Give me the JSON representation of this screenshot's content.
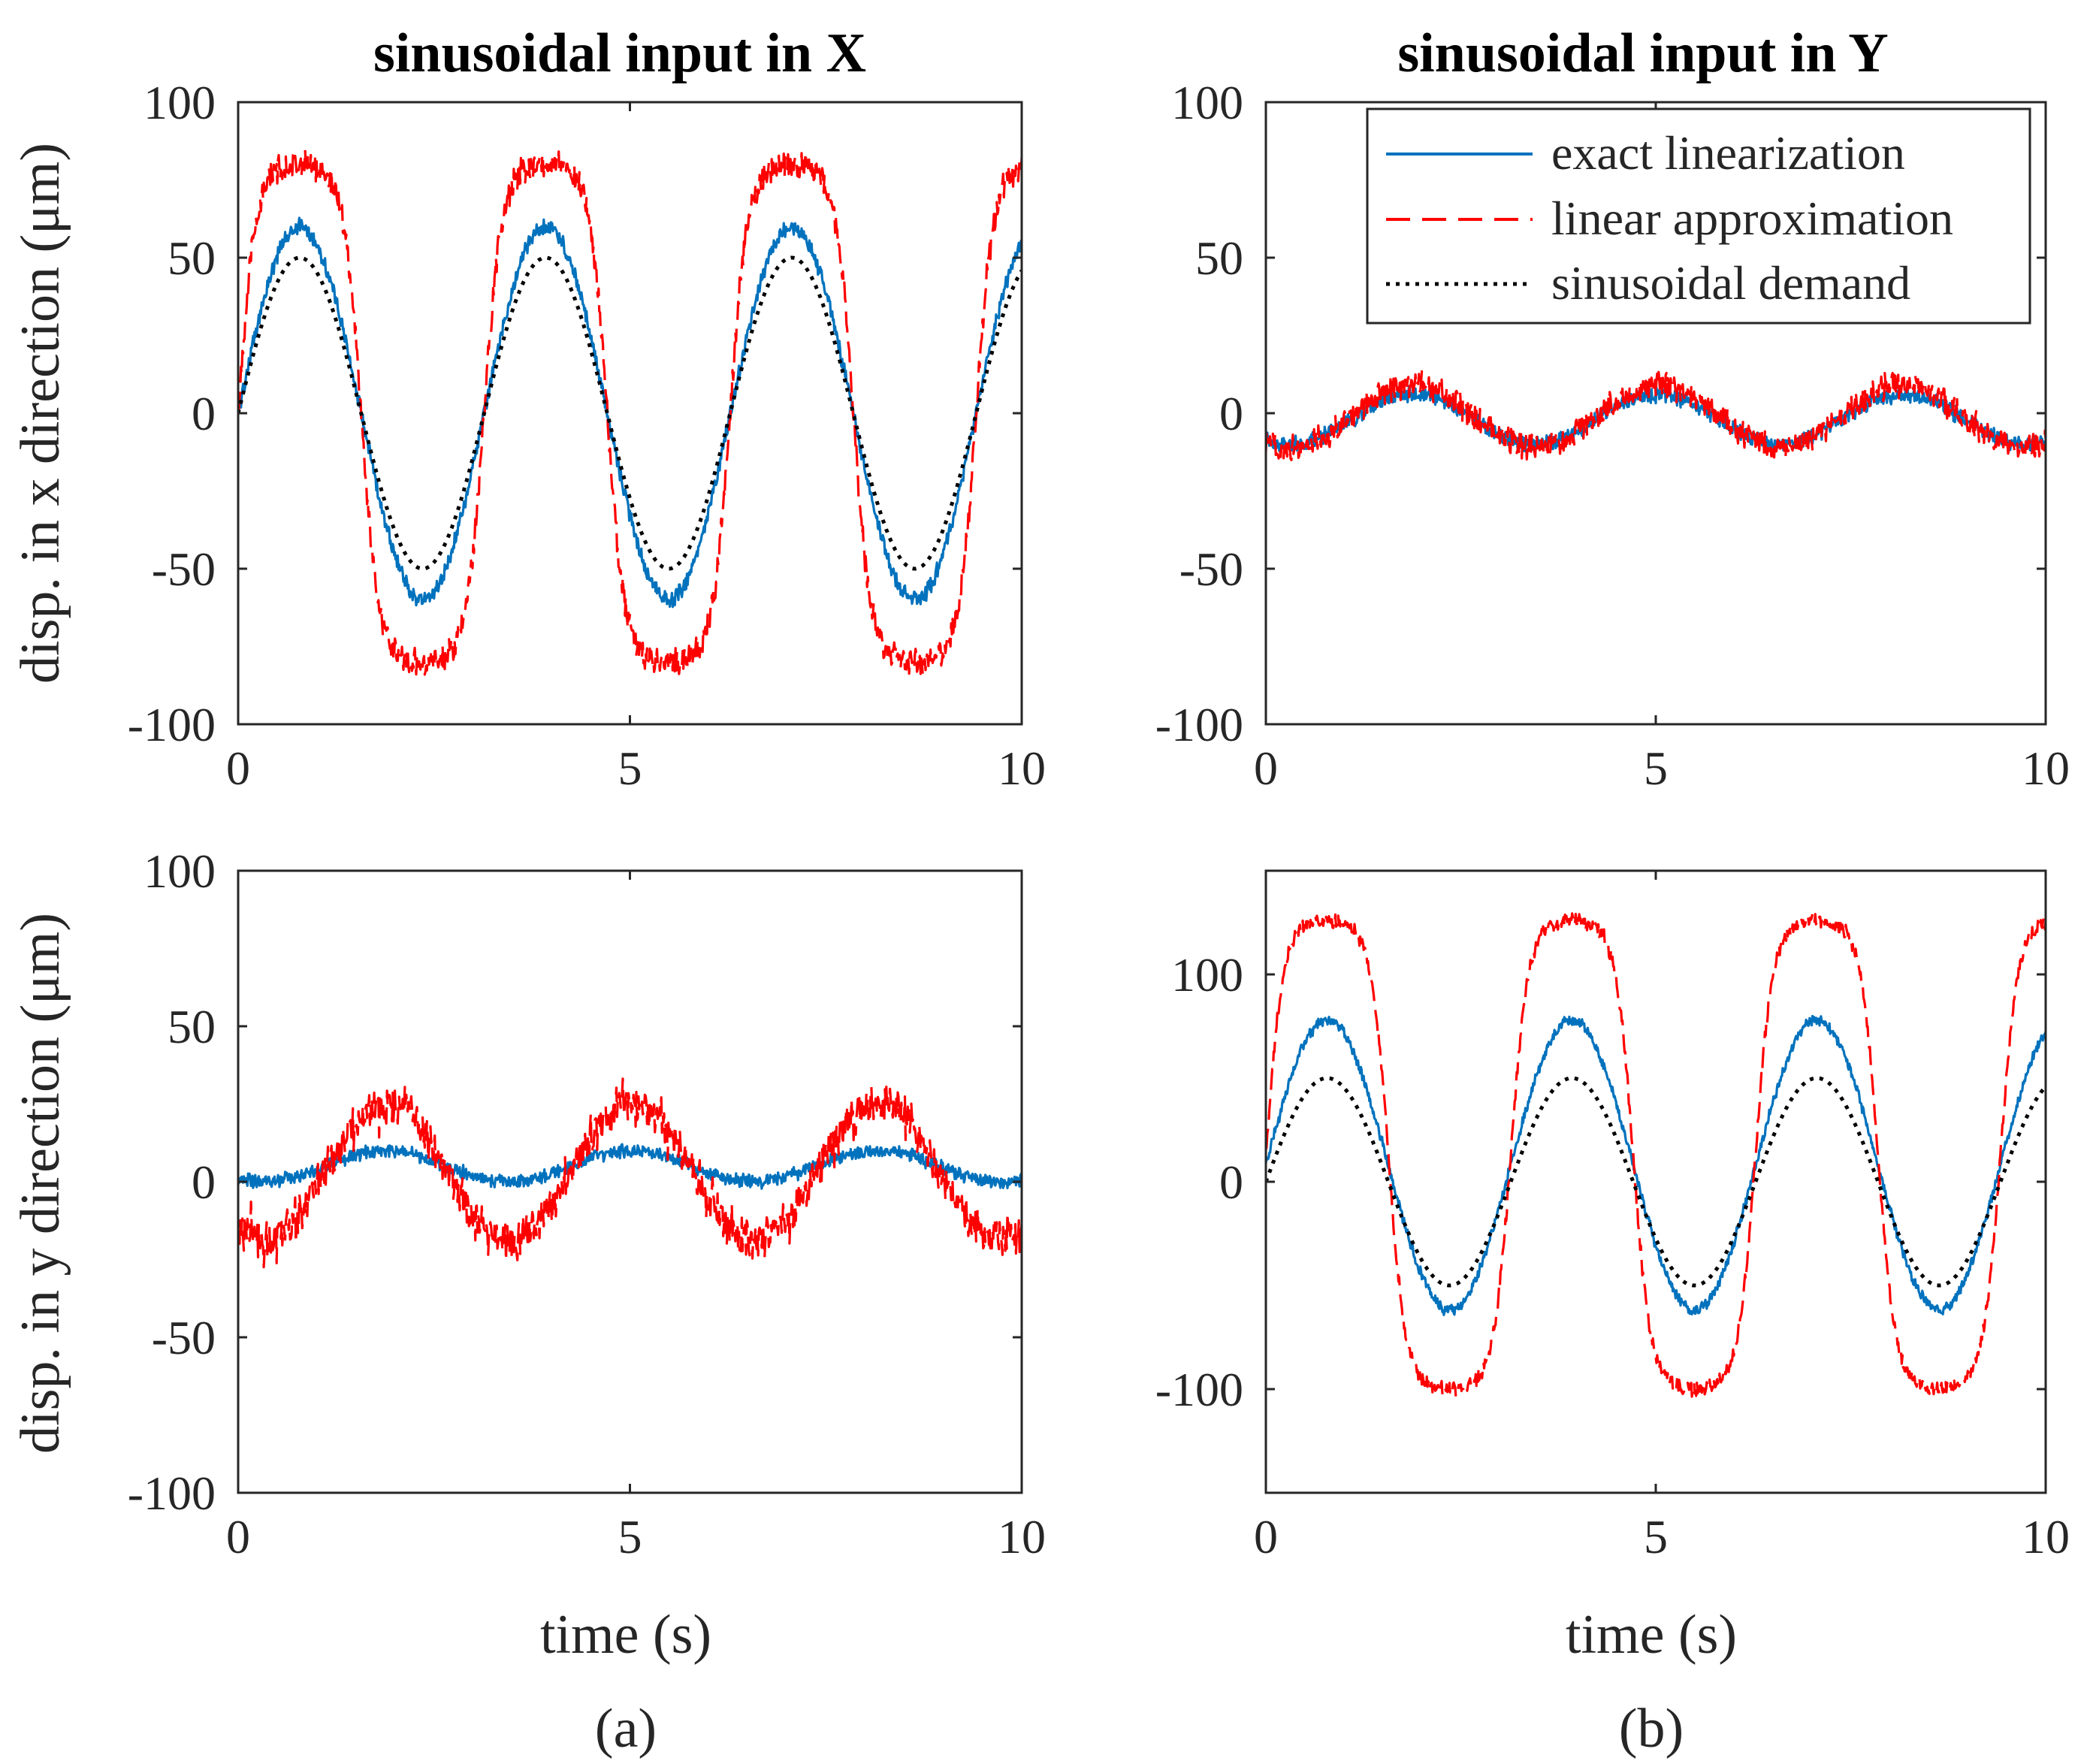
{
  "chart_data": [
    {
      "id": "x-input-x-disp",
      "type": "line",
      "title": "sinusoidal input in X",
      "xlabel": "",
      "ylabel": "disp. in x direction (μm)",
      "xlim": [
        0,
        10
      ],
      "ylim": [
        -100,
        100
      ],
      "xticks": [
        "0",
        "5",
        "10"
      ],
      "yticks": [
        "100",
        "50",
        "0",
        "-50",
        "-100"
      ],
      "xtick_values": [
        0,
        5,
        10
      ],
      "ytick_values": [
        100,
        50,
        0,
        -50,
        -100
      ],
      "sublabel": "",
      "series": [
        {
          "name": "exact linearization",
          "shape": "sin",
          "amp": 60,
          "offset": 0,
          "period": 3.14,
          "phase": 0,
          "noise": 3,
          "color": "#0072bd",
          "dash": "solid"
        },
        {
          "name": "linear approximation",
          "shape": "soft",
          "amp": 80,
          "offset": 0,
          "period": 3.14,
          "phase": 0,
          "noise": 5,
          "color": "#ff0000",
          "dash": "dashed"
        },
        {
          "name": "sinusoidal demand",
          "shape": "sin",
          "amp": 50,
          "offset": 0,
          "period": 3.14,
          "phase": 0,
          "noise": 0,
          "color": "#000000",
          "dash": "dotted"
        }
      ]
    },
    {
      "id": "y-input-x-disp",
      "type": "line",
      "title": "sinusoidal input in Y",
      "xlabel": "",
      "ylabel": "",
      "xlim": [
        0,
        10
      ],
      "ylim": [
        -100,
        100
      ],
      "xticks": [
        "0",
        "5",
        "10"
      ],
      "yticks": [
        "100",
        "50",
        "0",
        "-50",
        "-100"
      ],
      "xtick_values": [
        0,
        5,
        10
      ],
      "ytick_values": [
        100,
        50,
        0,
        -50,
        -100
      ],
      "sublabel": "",
      "legend": {
        "position": "top-right",
        "entries": [
          "exact linearization",
          "linear approximation",
          "sinusoidal demand"
        ]
      },
      "series": [
        {
          "name": "exact linearization",
          "shape": "sin",
          "amp": 8,
          "offset": -2,
          "period": 3.14,
          "phase": -2.2,
          "noise": 3,
          "color": "#0072bd",
          "dash": "solid"
        },
        {
          "name": "linear approximation",
          "shape": "sin",
          "amp": 10,
          "offset": -1,
          "period": 3.14,
          "phase": -2.2,
          "noise": 5,
          "color": "#ff0000",
          "dash": "dashed"
        }
      ]
    },
    {
      "id": "x-input-y-disp",
      "type": "line",
      "title": "",
      "xlabel": "time (s)",
      "ylabel": "disp. in y direction (μm)",
      "xlim": [
        0,
        10
      ],
      "ylim": [
        -100,
        100
      ],
      "xticks": [
        "0",
        "5",
        "10"
      ],
      "yticks": [
        "100",
        "50",
        "0",
        "-50",
        "-100"
      ],
      "xtick_values": [
        0,
        5,
        10
      ],
      "ytick_values": [
        100,
        50,
        0,
        -50,
        -100
      ],
      "sublabel": "(a)",
      "series": [
        {
          "name": "exact linearization",
          "shape": "sin",
          "amp": 5,
          "offset": 5,
          "period": 3.14,
          "phase": -2.2,
          "noise": 2.5,
          "color": "#0072bd",
          "dash": "solid"
        },
        {
          "name": "linear approximation",
          "shape": "spiky",
          "amp": 22,
          "offset": 3,
          "period": 3.14,
          "phase": -2.2,
          "noise": 7,
          "color": "#ff0000",
          "dash": "dashed"
        }
      ]
    },
    {
      "id": "y-input-y-disp",
      "type": "line",
      "title": "",
      "xlabel": "time (s)",
      "ylabel": "",
      "xlim": [
        0,
        10
      ],
      "ylim": [
        -150,
        150
      ],
      "xticks": [
        "0",
        "5",
        "10"
      ],
      "yticks": [
        "100",
        "0",
        "-100"
      ],
      "xtick_values": [
        0,
        5,
        10
      ],
      "ytick_values": [
        100,
        0,
        -100
      ],
      "sublabel": "(b)",
      "series": [
        {
          "name": "exact linearization",
          "shape": "sin",
          "amp": 70,
          "offset": 8,
          "period": 3.14,
          "phase": 0,
          "noise": 3,
          "color": "#0072bd",
          "dash": "solid"
        },
        {
          "name": "linear approximation",
          "shape": "soft",
          "amp": 113,
          "offset": 13,
          "period": 3.14,
          "phase": 0,
          "noise": 4,
          "color": "#ff0000",
          "dash": "dashed"
        },
        {
          "name": "sinusoidal demand",
          "shape": "sin",
          "amp": 50,
          "offset": 0,
          "period": 3.14,
          "phase": 0,
          "noise": 0,
          "color": "#000000",
          "dash": "dotted"
        }
      ]
    }
  ]
}
